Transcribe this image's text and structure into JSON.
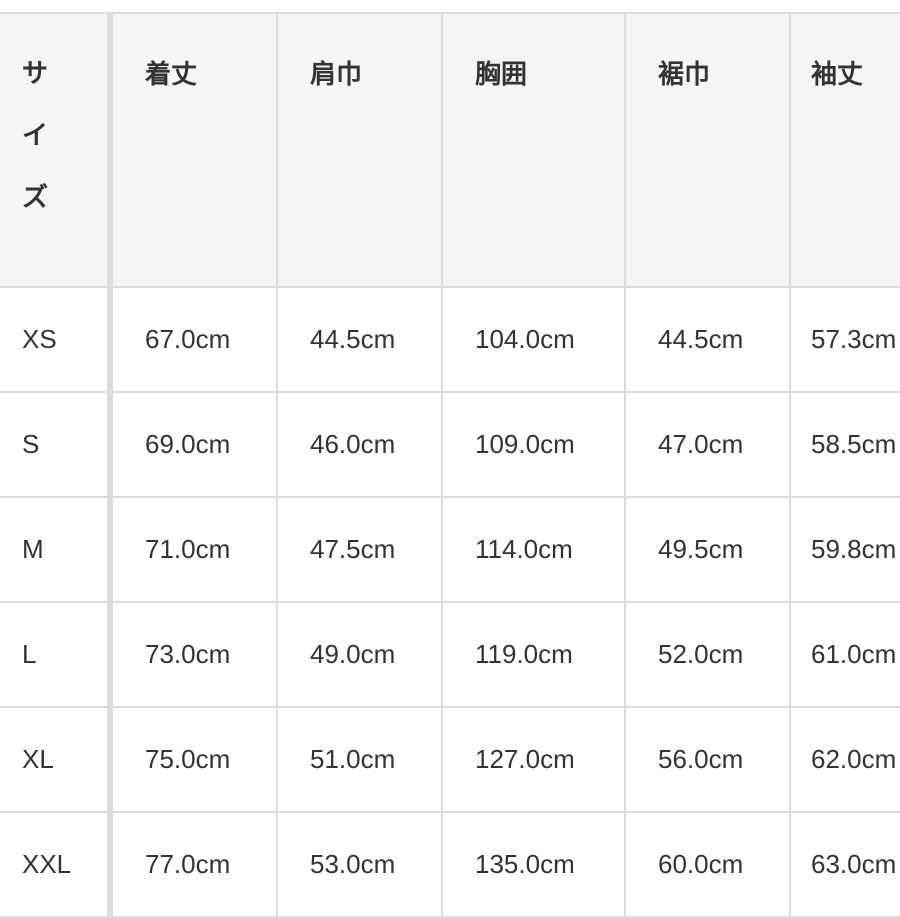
{
  "header": {
    "size": [
      "サ",
      "イ",
      "ズ"
    ],
    "columns": [
      "着丈",
      "肩巾",
      "胸囲",
      "裾巾",
      "袖丈"
    ]
  },
  "rows": [
    {
      "size": "XS",
      "values": [
        "67.0cm",
        "44.5cm",
        "104.0cm",
        "44.5cm",
        "57.3cm"
      ]
    },
    {
      "size": "S",
      "values": [
        "69.0cm",
        "46.0cm",
        "109.0cm",
        "47.0cm",
        "58.5cm"
      ]
    },
    {
      "size": "M",
      "values": [
        "71.0cm",
        "47.5cm",
        "114.0cm",
        "49.5cm",
        "59.8cm"
      ]
    },
    {
      "size": "L",
      "values": [
        "73.0cm",
        "49.0cm",
        "119.0cm",
        "52.0cm",
        "61.0cm"
      ]
    },
    {
      "size": "XL",
      "values": [
        "75.0cm",
        "51.0cm",
        "127.0cm",
        "56.0cm",
        "62.0cm"
      ]
    },
    {
      "size": "XXL",
      "values": [
        "77.0cm",
        "53.0cm",
        "135.0cm",
        "60.0cm",
        "63.0cm"
      ]
    }
  ]
}
